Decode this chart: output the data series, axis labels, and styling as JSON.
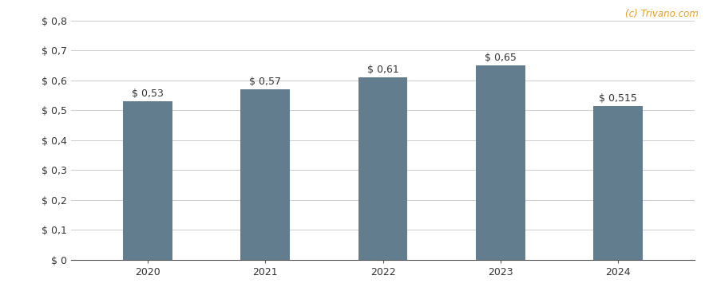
{
  "categories": [
    "2020",
    "2021",
    "2022",
    "2023",
    "2024"
  ],
  "values": [
    0.53,
    0.57,
    0.61,
    0.65,
    0.515
  ],
  "labels": [
    "$ 0,53",
    "$ 0,57",
    "$ 0,61",
    "$ 0,65",
    "$ 0,515"
  ],
  "bar_color": "#627d8e",
  "background_color": "#ffffff",
  "ylim": [
    0,
    0.8
  ],
  "yticks": [
    0,
    0.1,
    0.2,
    0.3,
    0.4,
    0.5,
    0.6,
    0.7,
    0.8
  ],
  "ytick_labels": [
    "$ 0",
    "$ 0,1",
    "$ 0,2",
    "$ 0,3",
    "$ 0,4",
    "$ 0,5",
    "$ 0,6",
    "$ 0,7",
    "$ 0,8"
  ],
  "watermark": "(c) Trivano.com",
  "watermark_color": "#e8a020",
  "grid_color": "#cccccc",
  "bar_width": 0.42,
  "label_fontsize": 9,
  "tick_fontsize": 9,
  "figsize": [
    8.88,
    3.7
  ],
  "dpi": 100
}
